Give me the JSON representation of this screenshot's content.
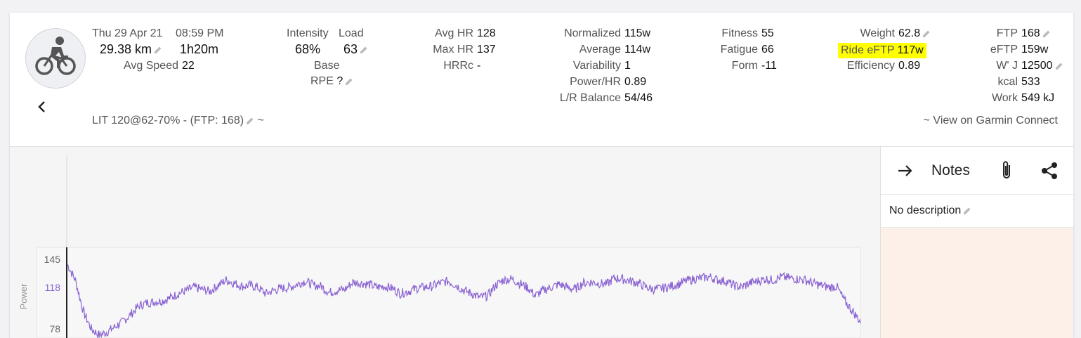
{
  "ride": {
    "date": "Thu 29 Apr 21",
    "time": "08:59 PM",
    "distance": "29.38 km",
    "duration": "1h20m",
    "avg_speed_label": "Avg Speed",
    "avg_speed": "22"
  },
  "intensity": {
    "intensity_label": "Intensity",
    "load_label": "Load",
    "intensity_value": "68%",
    "load_value": "63",
    "base_label": "Base",
    "rpe_label": "RPE",
    "rpe_value": "?"
  },
  "hr": {
    "avg_hr_label": "Avg HR",
    "avg_hr": "128",
    "max_hr_label": "Max HR",
    "max_hr": "137",
    "hrrc_label": "HRRc",
    "hrrc": "-"
  },
  "power": {
    "normalized_label": "Normalized",
    "normalized": "115w",
    "average_label": "Average",
    "average": "114w",
    "variability_label": "Variability",
    "variability": "1",
    "power_hr_label": "Power/HR",
    "power_hr": "0.89",
    "lr_label": "L/R Balance",
    "lr": "54/46"
  },
  "fitness": {
    "fitness_label": "Fitness",
    "fitness": "55",
    "fatigue_label": "Fatigue",
    "fatigue": "66",
    "form_label": "Form",
    "form": "-11"
  },
  "weight": {
    "weight_label": "Weight",
    "weight": "62.8",
    "ride_eftp_label": "Ride eFTP",
    "ride_eftp": "117w",
    "efficiency_label": "Efficiency",
    "efficiency": "0.89"
  },
  "ftp": {
    "ftp_label": "FTP",
    "ftp": "168",
    "eftp_label": "eFTP",
    "eftp": "159w",
    "wj_label": "W' J",
    "wj": "12500",
    "kcal_label": "kcal",
    "kcal": "533",
    "work_label": "Work",
    "work": "549 kJ"
  },
  "workout_label": "LIT 120@62-70% - (FTP: 168)",
  "workout_suffix": "~",
  "garmin_link": "~ View on Garmin Connect",
  "notes": {
    "title": "Notes",
    "description": "No description"
  },
  "colors": {
    "accent_line": "#8a63d2",
    "highlight": "#ffff00",
    "notes_bg": "#fcf0e8"
  },
  "chart_data": {
    "type": "line",
    "title": "",
    "ylabel": "Power",
    "yticks": [
      145,
      118,
      78
    ],
    "ylim": [
      70,
      150
    ],
    "series": [
      {
        "values": [
          140,
          125,
          95,
          78,
          72,
          75,
          80,
          85,
          92,
          100,
          103,
          104,
          105,
          108,
          112,
          115,
          118,
          116,
          114,
          120,
          125,
          122,
          119,
          120,
          118,
          112,
          115,
          117,
          118,
          121,
          124,
          120,
          119,
          113,
          115,
          116,
          123,
          122,
          121,
          118,
          119,
          117,
          112,
          114,
          117,
          118,
          119,
          122,
          124,
          120,
          115,
          112,
          108,
          110,
          120,
          125,
          126,
          122,
          118,
          110,
          115,
          118,
          121,
          118,
          116,
          122,
          123,
          122,
          121,
          127,
          126,
          124,
          122,
          118,
          116,
          117,
          119,
          121,
          124,
          126,
          127,
          128,
          125,
          124,
          120,
          118,
          122,
          124,
          126,
          125,
          128,
          127,
          126,
          125,
          122,
          120,
          118,
          119,
          105,
          95,
          85
        ]
      }
    ]
  }
}
